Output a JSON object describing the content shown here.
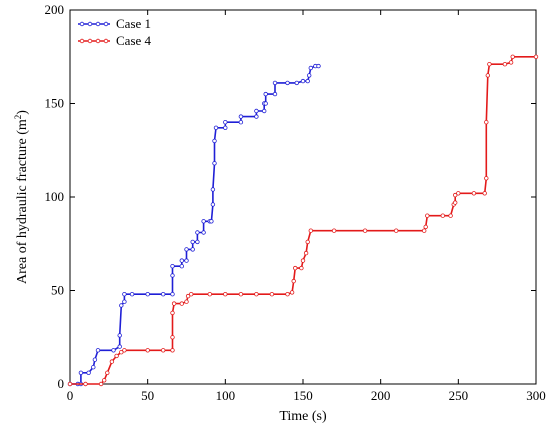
{
  "chart_data": {
    "type": "line",
    "title": "",
    "xlabel": "Time (s)",
    "ylabel": "Area of hydraulic fracture (m²)",
    "ylabel_base": "Area of hydraulic fracture (m",
    "ylabel_sup": "2",
    "ylabel_end": ")",
    "xlim": [
      0,
      300
    ],
    "ylim": [
      0,
      200
    ],
    "xticks": [
      0,
      50,
      100,
      150,
      200,
      250,
      300
    ],
    "yticks": [
      0,
      50,
      100,
      150,
      200
    ],
    "grid": false,
    "legend_position": "top-left",
    "series": [
      {
        "name": "Case 1",
        "color": "#1f1fd6",
        "points": [
          [
            0,
            0
          ],
          [
            5,
            0
          ],
          [
            7,
            0
          ],
          [
            7,
            6
          ],
          [
            12,
            6
          ],
          [
            15,
            9
          ],
          [
            16,
            13
          ],
          [
            18,
            18
          ],
          [
            28,
            18
          ],
          [
            32,
            20
          ],
          [
            32,
            26
          ],
          [
            33,
            42
          ],
          [
            35,
            44
          ],
          [
            35,
            48
          ],
          [
            40,
            48
          ],
          [
            50,
            48
          ],
          [
            60,
            48
          ],
          [
            66,
            48
          ],
          [
            66,
            58
          ],
          [
            66,
            63
          ],
          [
            72,
            63
          ],
          [
            72,
            66
          ],
          [
            75,
            66
          ],
          [
            75,
            72
          ],
          [
            79,
            72
          ],
          [
            79,
            76
          ],
          [
            82,
            76
          ],
          [
            82,
            81
          ],
          [
            86,
            81
          ],
          [
            86,
            87
          ],
          [
            90,
            87
          ],
          [
            91,
            87
          ],
          [
            92,
            96
          ],
          [
            92,
            104
          ],
          [
            93,
            118
          ],
          [
            93,
            130
          ],
          [
            94,
            137
          ],
          [
            100,
            137
          ],
          [
            100,
            140
          ],
          [
            110,
            140
          ],
          [
            110,
            143
          ],
          [
            120,
            143
          ],
          [
            120,
            146
          ],
          [
            125,
            146
          ],
          [
            125,
            150
          ],
          [
            126,
            150
          ],
          [
            126,
            155
          ],
          [
            132,
            155
          ],
          [
            132,
            161
          ],
          [
            140,
            161
          ],
          [
            146,
            161
          ],
          [
            150,
            162
          ],
          [
            153,
            162
          ],
          [
            154,
            165
          ],
          [
            155,
            169
          ],
          [
            158,
            170
          ],
          [
            160,
            170
          ]
        ]
      },
      {
        "name": "Case 4",
        "color": "#e31a1a",
        "points": [
          [
            0,
            0
          ],
          [
            10,
            0
          ],
          [
            20,
            0
          ],
          [
            22,
            2
          ],
          [
            24,
            6
          ],
          [
            27,
            12
          ],
          [
            30,
            15
          ],
          [
            33,
            17
          ],
          [
            35,
            18
          ],
          [
            50,
            18
          ],
          [
            60,
            18
          ],
          [
            66,
            18
          ],
          [
            66,
            25
          ],
          [
            66,
            38
          ],
          [
            67,
            43
          ],
          [
            72,
            43
          ],
          [
            75,
            44
          ],
          [
            76,
            47
          ],
          [
            78,
            48
          ],
          [
            90,
            48
          ],
          [
            100,
            48
          ],
          [
            110,
            48
          ],
          [
            120,
            48
          ],
          [
            130,
            48
          ],
          [
            140,
            48
          ],
          [
            143,
            49
          ],
          [
            144,
            55
          ],
          [
            145,
            62
          ],
          [
            149,
            62
          ],
          [
            150,
            66
          ],
          [
            152,
            70
          ],
          [
            153,
            76
          ],
          [
            155,
            82
          ],
          [
            170,
            82
          ],
          [
            190,
            82
          ],
          [
            210,
            82
          ],
          [
            228,
            82
          ],
          [
            229,
            84
          ],
          [
            230,
            90
          ],
          [
            240,
            90
          ],
          [
            245,
            90
          ],
          [
            247,
            96
          ],
          [
            248,
            97
          ],
          [
            248,
            101
          ],
          [
            250,
            102
          ],
          [
            260,
            102
          ],
          [
            267,
            102
          ],
          [
            268,
            110
          ],
          [
            268,
            140
          ],
          [
            269,
            165
          ],
          [
            270,
            171
          ],
          [
            280,
            171
          ],
          [
            284,
            172
          ],
          [
            285,
            175
          ],
          [
            300,
            175
          ]
        ]
      }
    ]
  }
}
